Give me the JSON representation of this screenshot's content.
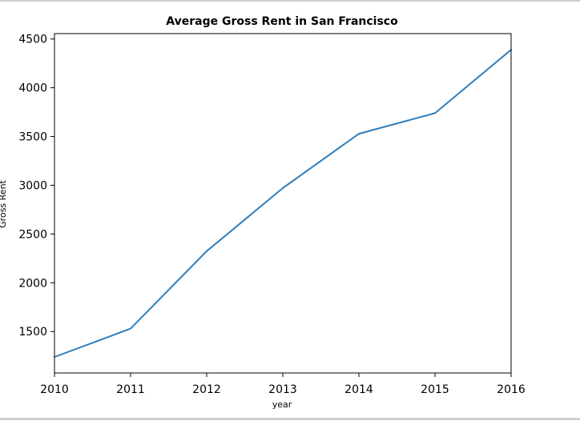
{
  "chart_data": {
    "type": "line",
    "title": "Average Gross Rent in San Francisco",
    "xlabel": "year",
    "ylabel": "Gross Rent",
    "x": [
      2010,
      2011,
      2012,
      2013,
      2014,
      2015,
      2016
    ],
    "series": [
      {
        "values": [
          1239,
          1530,
          2324,
          2971,
          3528,
          3739,
          4390
        ],
        "color": "#2f7ebc"
      }
    ],
    "xlim": [
      2010,
      2016
    ],
    "ylim": [
      1075,
      4555
    ],
    "xticks": [
      2010,
      2011,
      2012,
      2013,
      2014,
      2015,
      2016
    ],
    "yticks": [
      1500,
      2000,
      2500,
      3000,
      3500,
      4000,
      4500
    ],
    "grid": false,
    "legend": "none"
  }
}
